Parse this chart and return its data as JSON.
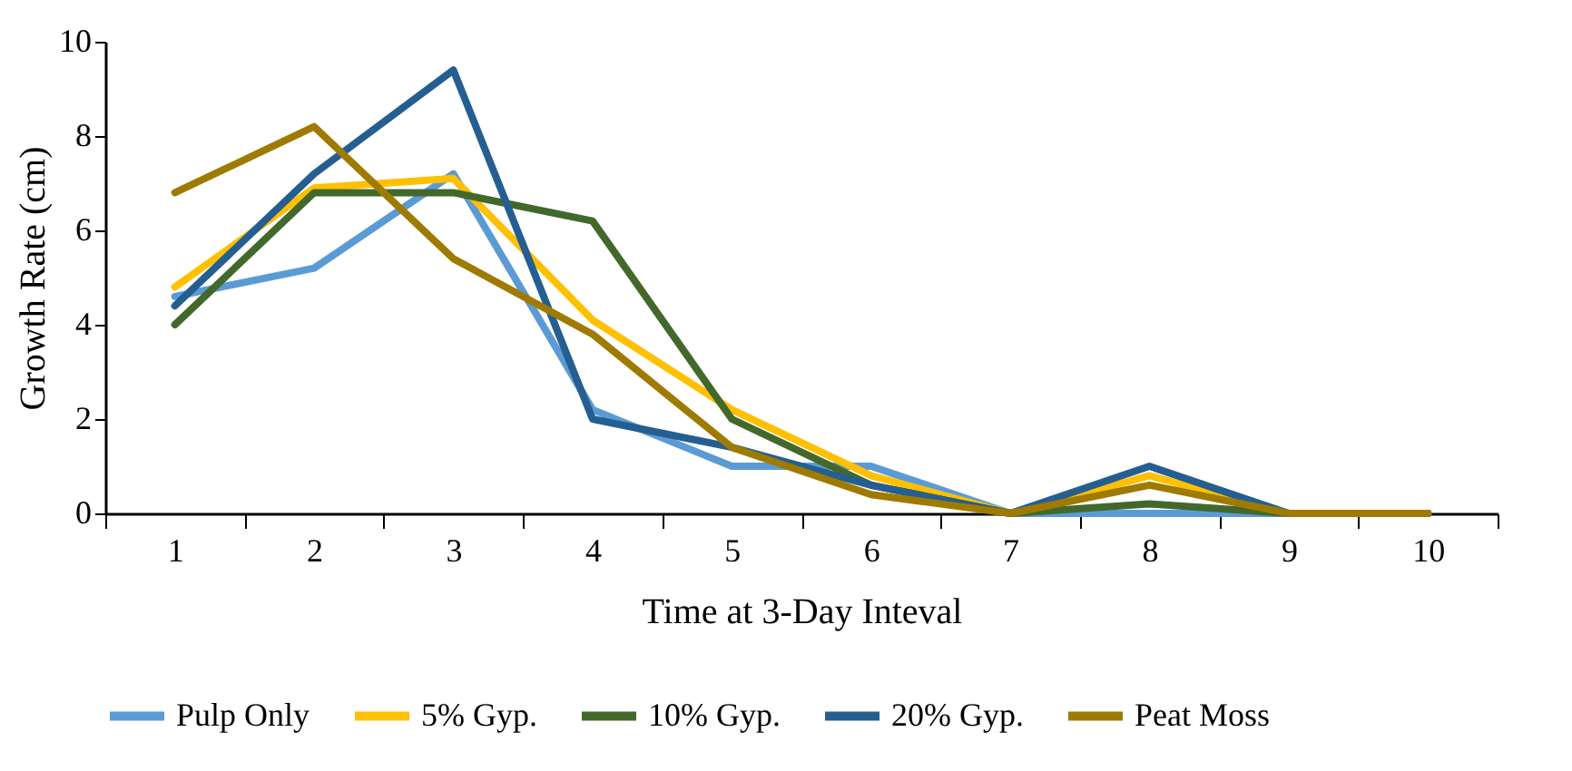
{
  "chart_data": {
    "type": "line",
    "xlabel": "Time at 3-Day Inteval",
    "ylabel": "Growth Rate (cm)",
    "categories": [
      "1",
      "2",
      "3",
      "4",
      "5",
      "6",
      "7",
      "8",
      "9",
      "10"
    ],
    "ylim": [
      0,
      10
    ],
    "yticks": [
      0,
      2,
      4,
      6,
      8,
      10
    ],
    "grid": false,
    "legend": "bottom",
    "marker": "none",
    "line_style": "solid",
    "series": [
      {
        "name": "Pulp Only",
        "color": "#5b9bd5",
        "values": [
          4.6,
          5.2,
          7.2,
          2.2,
          1.0,
          1.0,
          0,
          0,
          0,
          0
        ]
      },
      {
        "name": "5% Gyp.",
        "color": "#ffc000",
        "values": [
          4.8,
          6.9,
          7.1,
          4.1,
          2.2,
          0.8,
          0,
          0.8,
          0,
          0
        ]
      },
      {
        "name": "10% Gyp.",
        "color": "#43682b",
        "values": [
          4.0,
          6.8,
          6.8,
          6.2,
          2.0,
          0.6,
          0,
          0.2,
          0,
          0
        ]
      },
      {
        "name": "20% Gyp.",
        "color": "#255e91",
        "values": [
          4.4,
          7.2,
          9.4,
          2.0,
          1.4,
          0.6,
          0,
          1.0,
          0,
          0
        ]
      },
      {
        "name": "Peat Moss",
        "color": "#9e7b00",
        "values": [
          6.8,
          8.2,
          5.4,
          3.8,
          1.4,
          0.4,
          0,
          0.6,
          0,
          0
        ]
      }
    ]
  }
}
